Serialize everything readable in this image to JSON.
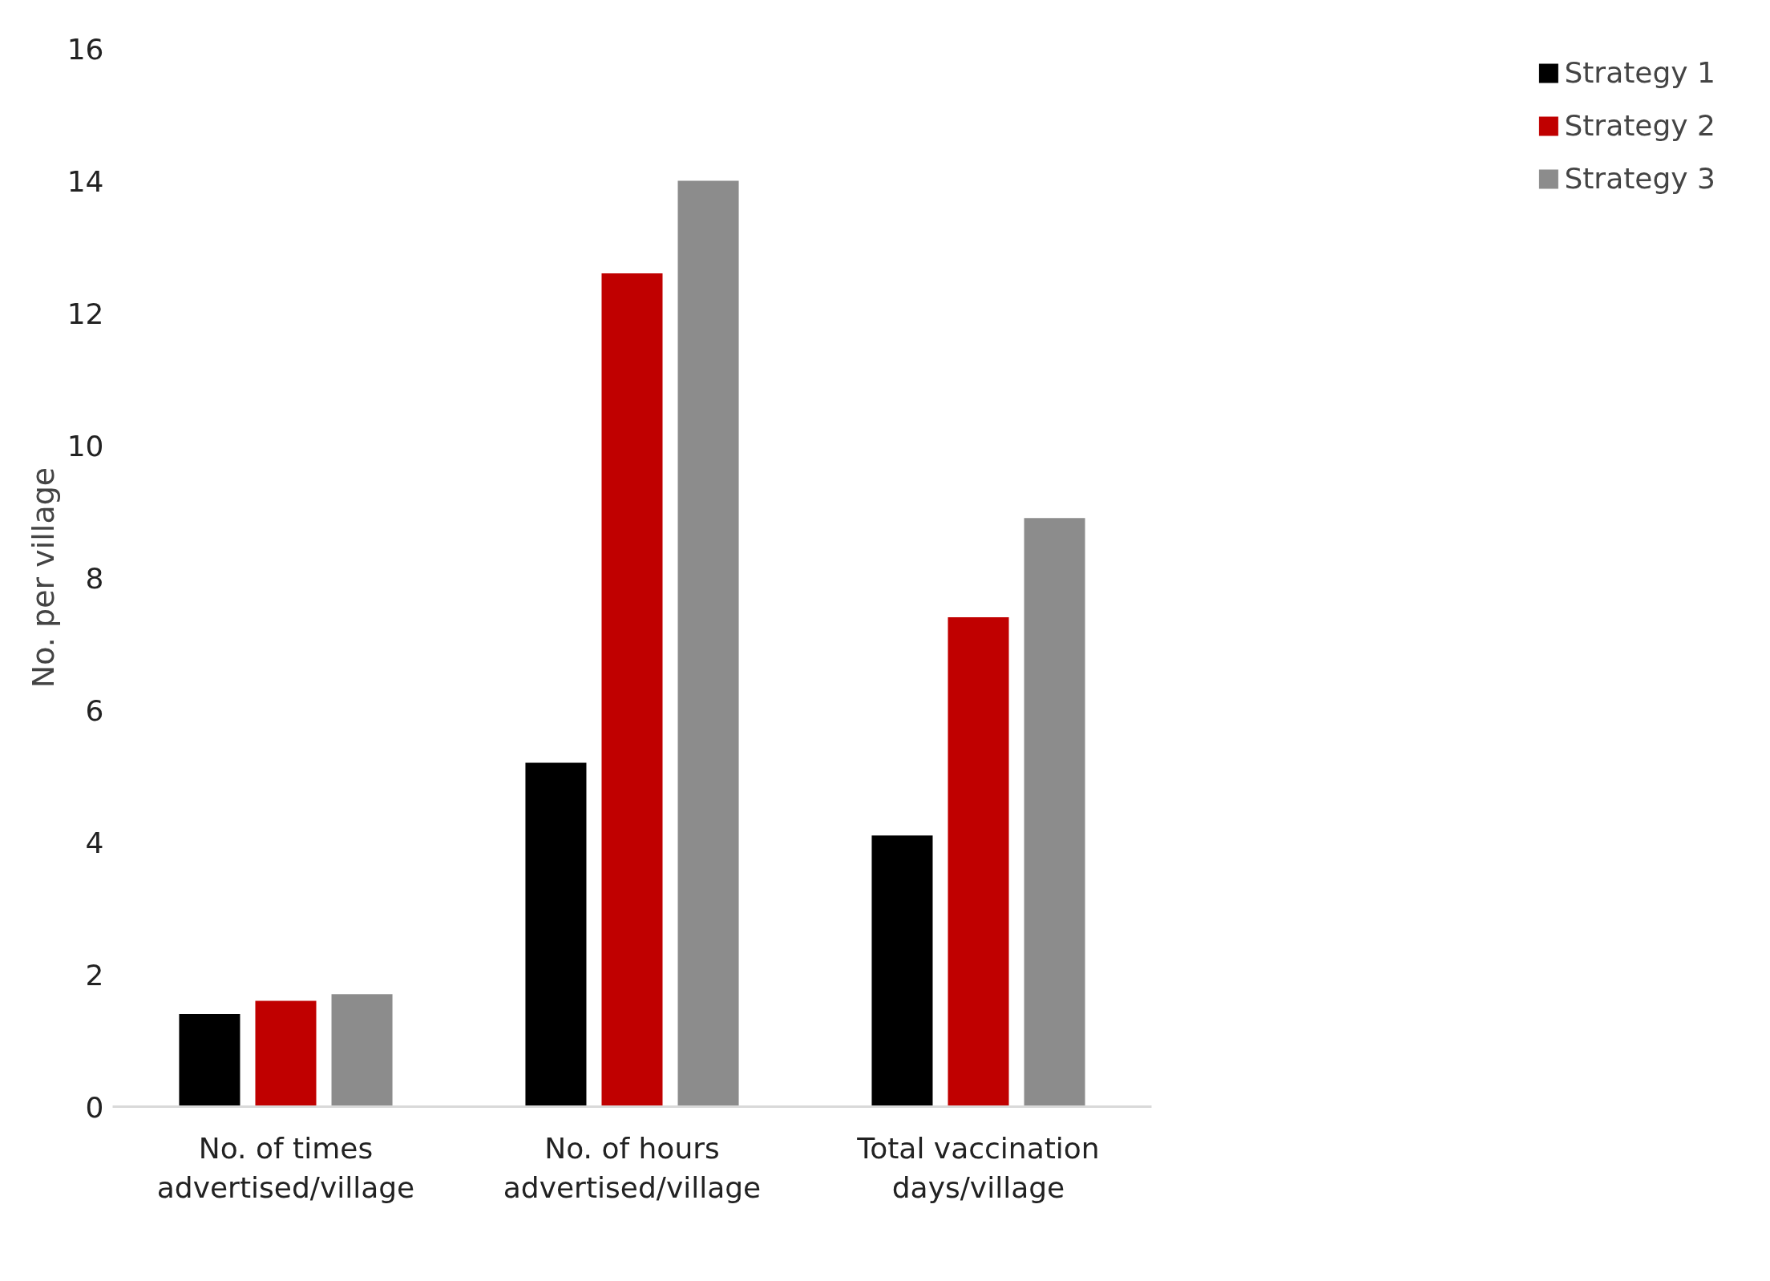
{
  "chart_data": {
    "type": "bar",
    "ylabel": "No. per village",
    "categories": [
      "No. of times\nadvertised/village",
      "No. of hours\nadvertised/village",
      "Total vaccination\ndays/village"
    ],
    "series": [
      {
        "name": "Strategy 1",
        "color": "#000000",
        "values": [
          1.4,
          5.2,
          4.1
        ]
      },
      {
        "name": "Strategy 2",
        "color": "#c00000",
        "values": [
          1.6,
          12.6,
          7.4
        ]
      },
      {
        "name": "Strategy 3",
        "color": "#8c8c8c",
        "values": [
          1.7,
          14.0,
          8.9
        ]
      }
    ],
    "ylim": [
      0,
      16
    ],
    "yticks": [
      0,
      2,
      4,
      6,
      8,
      10,
      12,
      14,
      16
    ],
    "grid": false,
    "legend": "right"
  }
}
